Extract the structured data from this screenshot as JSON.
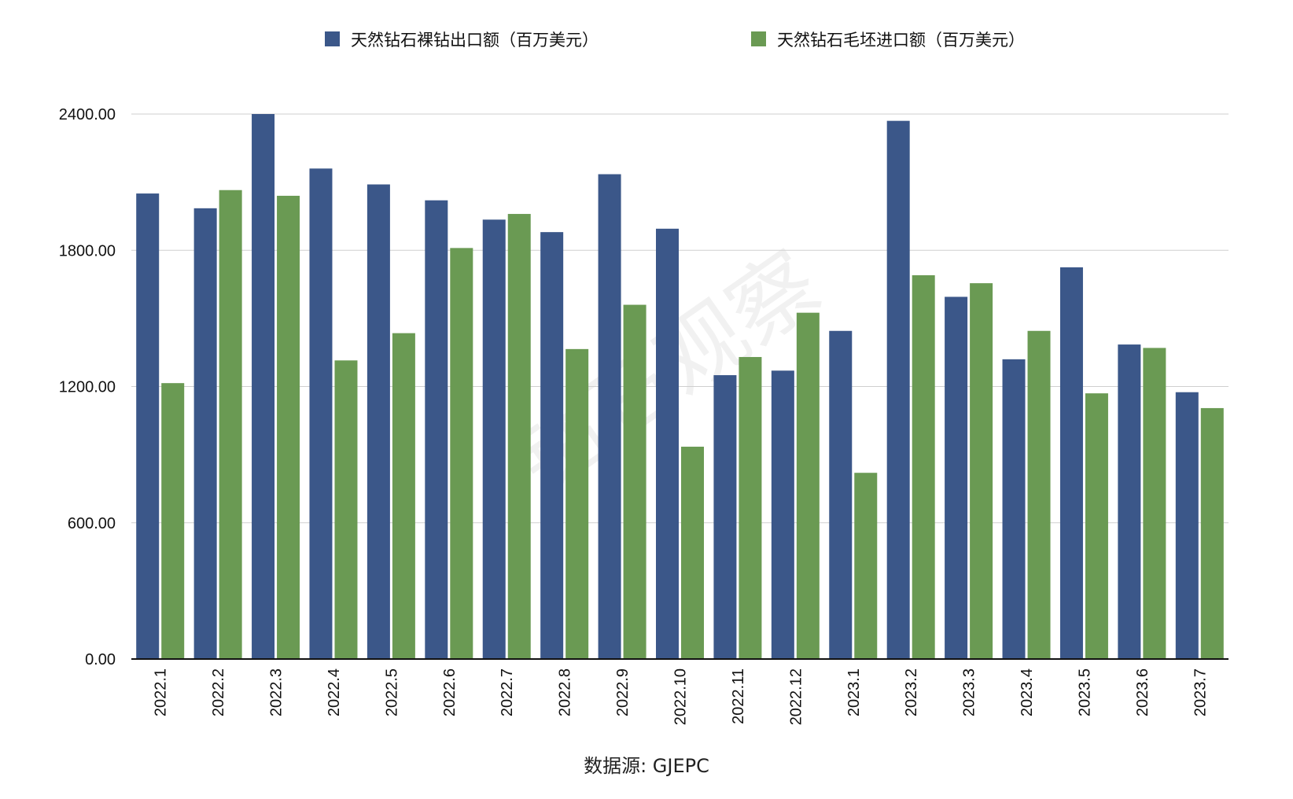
{
  "chart_data": {
    "type": "bar",
    "categories": [
      "2022.1",
      "2022.2",
      "2022.3",
      "2022.4",
      "2022.5",
      "2022.6",
      "2022.7",
      "2022.8",
      "2022.9",
      "2022.10",
      "2022.11",
      "2022.12",
      "2023.1",
      "2023.2",
      "2023.3",
      "2023.4",
      "2023.5",
      "2023.6",
      "2023.7"
    ],
    "series": [
      {
        "name": "天然钻石裸钻出口额（百万美元）",
        "color": "#3b5789",
        "values": [
          2050,
          1985,
          2400,
          2160,
          2090,
          2020,
          1935,
          1880,
          2135,
          1895,
          1250,
          1270,
          1445,
          2370,
          1595,
          1320,
          1725,
          1385,
          1175
        ]
      },
      {
        "name": "天然钻石毛坯进口额（百万美元）",
        "color": "#6a9a53",
        "values": [
          1215,
          2065,
          2040,
          1315,
          1435,
          1810,
          1960,
          1365,
          1560,
          935,
          1330,
          1525,
          820,
          1690,
          1655,
          1445,
          1170,
          1370,
          1105
        ]
      }
    ],
    "ylim": [
      0,
      2400
    ],
    "y_ticks": [
      "0.00",
      "600.00",
      "1200.00",
      "1800.00",
      "2400.00"
    ],
    "y_tick_values": [
      0,
      600,
      1200,
      1800,
      2400
    ],
    "grid": true,
    "legend": "top",
    "source": "数据源: GJEPC",
    "watermark": "钻石观察"
  }
}
